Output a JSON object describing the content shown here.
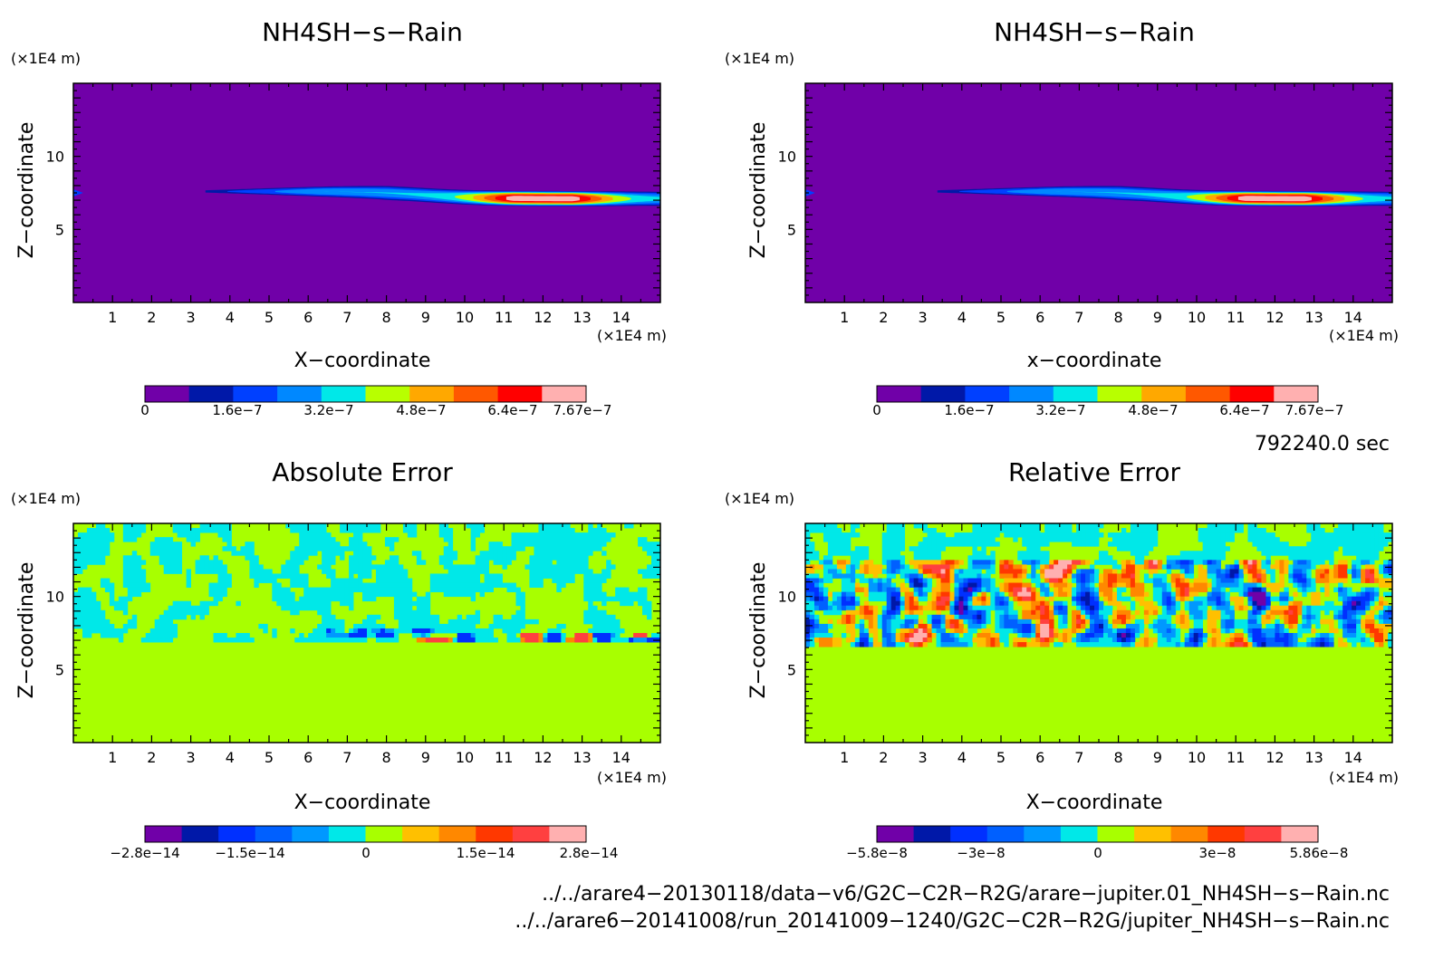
{
  "panels": [
    {
      "title": "NH4SH−s−Rain",
      "y_unit": "(×1E4 m)",
      "x_unit": "(×1E4 m)",
      "xlabel": "X−coordinate",
      "ylabel": "Z−coordinate",
      "colorbar_labels": [
        "0",
        "1.6e−7",
        "3.2e−7",
        "4.8e−7",
        "6.4e−7",
        "7.67e−7"
      ]
    },
    {
      "title": "NH4SH−s−Rain",
      "y_unit": "(×1E4 m)",
      "x_unit": "(×1E4 m)",
      "xlabel": "x−coordinate",
      "ylabel": "Z−coordinate",
      "colorbar_labels": [
        "0",
        "1.6e−7",
        "3.2e−7",
        "4.8e−7",
        "6.4e−7",
        "7.67e−7"
      ]
    },
    {
      "title": "Absolute Error",
      "y_unit": "(×1E4 m)",
      "x_unit": "(×1E4 m)",
      "xlabel": "X−coordinate",
      "ylabel": "Z−coordinate",
      "colorbar_labels": [
        "−2.8e−14",
        "−1.5e−14",
        "0",
        "1.5e−14",
        "2.8e−14"
      ]
    },
    {
      "title": "Relative Error",
      "y_unit": "(×1E4 m)",
      "x_unit": "(×1E4 m)",
      "xlabel": "X−coordinate",
      "ylabel": "Z−coordinate",
      "colorbar_labels": [
        "−5.8e−8",
        "−3e−8",
        "0",
        "3e−8",
        "5.86e−8"
      ]
    }
  ],
  "time_label": "792240.0 sec",
  "footer": {
    "line1": "../../arare4−20130118/data−v6/G2C−C2R−R2G/arare−jupiter.01_NH4SH−s−Rain.nc",
    "line2": "../../arare6−20141008/run_20141009−1240/G2C−C2R−R2G/jupiter_NH4SH−s−Rain.nc"
  },
  "chart_data": [
    {
      "type": "heatmap",
      "title": "NH4SH−s−Rain",
      "xlabel": "X−coordinate",
      "ylabel": "Z−coordinate",
      "xlim": [
        0,
        15
      ],
      "ylim": [
        0,
        15
      ],
      "x_ticks": [
        1,
        2,
        3,
        4,
        5,
        6,
        7,
        8,
        9,
        10,
        11,
        12,
        13,
        14
      ],
      "y_ticks": [
        5,
        10
      ],
      "colorbar": {
        "min": 0,
        "max": 7.67e-07,
        "levels": 10,
        "colors": [
          "#7000a8",
          "#0018a8",
          "#0040ff",
          "#0088ff",
          "#00e8e8",
          "#b8ff00",
          "#ffa800",
          "#ff5800",
          "#ff0000",
          "#ffb0b0"
        ]
      },
      "features": [
        {
          "kind": "layer",
          "z": [
            6.8,
            7.8
          ],
          "x": [
            3.3,
            15
          ],
          "peak_value": 7.67e-07,
          "peak_x": [
            10.5,
            13.5
          ],
          "peak_z": 7.2
        }
      ]
    },
    {
      "type": "heatmap",
      "title": "NH4SH−s−Rain",
      "xlabel": "x−coordinate",
      "ylabel": "Z−coordinate",
      "xlim": [
        0,
        15
      ],
      "ylim": [
        0,
        15
      ],
      "x_ticks": [
        1,
        2,
        3,
        4,
        5,
        6,
        7,
        8,
        9,
        10,
        11,
        12,
        13,
        14
      ],
      "y_ticks": [
        5,
        10
      ],
      "colorbar": {
        "min": 0,
        "max": 7.67e-07,
        "levels": 10
      },
      "features": [
        {
          "kind": "layer",
          "z": [
            6.8,
            7.8
          ],
          "x": [
            3.3,
            15
          ],
          "peak_value": 7.67e-07,
          "peak_x": [
            10.5,
            13.5
          ],
          "peak_z": 7.2
        }
      ]
    },
    {
      "type": "heatmap",
      "title": "Absolute Error",
      "xlabel": "X−coordinate",
      "ylabel": "Z−coordinate",
      "xlim": [
        0,
        15
      ],
      "ylim": [
        0,
        15
      ],
      "x_ticks": [
        1,
        2,
        3,
        4,
        5,
        6,
        7,
        8,
        9,
        10,
        11,
        12,
        13,
        14
      ],
      "y_ticks": [
        5,
        10
      ],
      "colorbar": {
        "min": -2.8e-14,
        "max": 2.8e-14,
        "levels": 12,
        "colors": [
          "#7000a8",
          "#0018a8",
          "#0030ff",
          "#0060ff",
          "#0098ff",
          "#00e8e8",
          "#a8ff00",
          "#ffc000",
          "#ff8800",
          "#ff3800",
          "#ff4040",
          "#ffb0b0"
        ]
      },
      "features": [
        {
          "kind": "noise",
          "z": [
            6.8,
            15
          ],
          "values": "near 0 (cyan / green)"
        },
        {
          "kind": "uniform",
          "z": [
            0,
            6.8
          ],
          "value": 0
        }
      ]
    },
    {
      "type": "heatmap",
      "title": "Relative Error",
      "xlabel": "X−coordinate",
      "ylabel": "Z−coordinate",
      "xlim": [
        0,
        15
      ],
      "ylim": [
        0,
        15
      ],
      "x_ticks": [
        1,
        2,
        3,
        4,
        5,
        6,
        7,
        8,
        9,
        10,
        11,
        12,
        13,
        14
      ],
      "y_ticks": [
        5,
        10
      ],
      "colorbar": {
        "min": -5.8e-08,
        "max": 5.86e-08,
        "levels": 12
      },
      "features": [
        {
          "kind": "noise",
          "z": [
            12.5,
            15
          ],
          "values": "near 0 (cyan / green)"
        },
        {
          "kind": "noise",
          "z": [
            6.5,
            12.5
          ],
          "values": "full range ±5.8e−8"
        },
        {
          "kind": "uniform",
          "z": [
            0,
            6.5
          ],
          "value": 0
        }
      ]
    }
  ]
}
